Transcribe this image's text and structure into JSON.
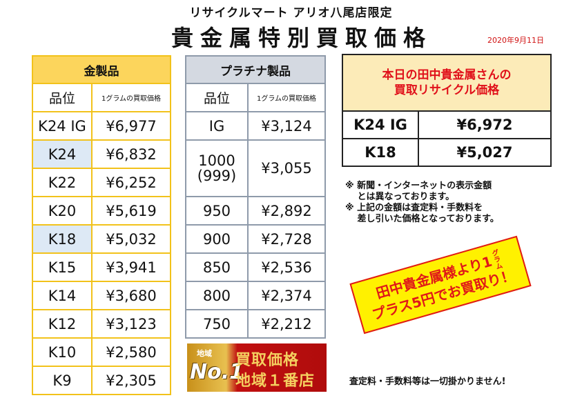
{
  "header": {
    "shop": "リサイクルマート アリオ八尾店限定",
    "title": "貴金属特別買取価格",
    "date": "2020年9月11日"
  },
  "gold": {
    "title": "金製品",
    "col_purity": "品位",
    "col_price": "1グラムの買取価格",
    "rows": [
      {
        "purity": "K24 IG",
        "price": "¥6,977"
      },
      {
        "purity": "K24",
        "price": "¥6,832"
      },
      {
        "purity": "K22",
        "price": "¥6,252"
      },
      {
        "purity": "K20",
        "price": "¥5,619"
      },
      {
        "purity": "K18",
        "price": "¥5,032"
      },
      {
        "purity": "K15",
        "price": "¥3,941"
      },
      {
        "purity": "K14",
        "price": "¥3,680"
      },
      {
        "purity": "K12",
        "price": "¥3,123"
      },
      {
        "purity": "K10",
        "price": "¥2,580"
      },
      {
        "purity": "K9",
        "price": "¥2,305"
      }
    ]
  },
  "platinum": {
    "title": "プラチナ製品",
    "col_purity": "品位",
    "col_price": "1グラムの買取価格",
    "rows": [
      {
        "purity": "IG",
        "price": "¥3,124"
      },
      {
        "purity": "1000",
        "purity2": "(999)",
        "price": "¥3,055"
      },
      {
        "purity": "950",
        "price": "¥2,892"
      },
      {
        "purity": "900",
        "price": "¥2,728"
      },
      {
        "purity": "850",
        "price": "¥2,536"
      },
      {
        "purity": "800",
        "price": "¥2,374"
      },
      {
        "purity": "750",
        "price": "¥2,212"
      }
    ]
  },
  "tanaka": {
    "title_line1": "本日の田中貴金属さんの",
    "title_line2": "買取リサイクル価格",
    "rows": [
      {
        "purity": "K24 IG",
        "price": "¥6,972"
      },
      {
        "purity": "K18",
        "price": "¥5,027"
      }
    ]
  },
  "notes": [
    "※ 新聞・インターネットの表示金額",
    "　 とは異なっております。",
    "※ 上記の金額は査定料・手数料を",
    "　 差し引いた価格となっております。"
  ],
  "promo": {
    "line1": "田中貴金属様より",
    "num": "1",
    "unit": "グラム",
    "line2": "プラス5円でお買取り！"
  },
  "badge": {
    "sub": "地域",
    "no1": "No.1",
    "line1": "買取価格",
    "line2": "地域１番店"
  },
  "footer": "査定料・手数料等は一切掛かりません!",
  "colors": {
    "gold_border": "#f2c21a",
    "gold_header": "#fcd55c",
    "platinum_border": "#8e9aaa",
    "platinum_header": "#d4d9e1",
    "highlight": "#dde9f5",
    "accent_red": "#e01818",
    "promo_yellow": "#fff100"
  }
}
